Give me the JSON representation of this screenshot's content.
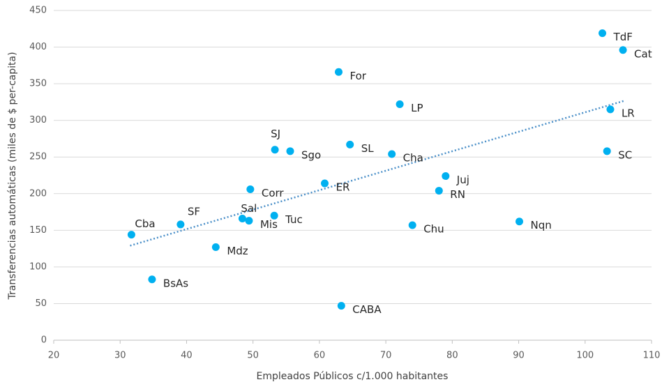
{
  "chart_data": {
    "type": "scatter",
    "x_label": "Empleados Públicos c/1.000 habitantes",
    "y_label": "Transferencias automáticas (miles de $ per-capita)",
    "labels": [
      "TdF",
      "Cat",
      "For",
      "LP",
      "LR",
      "SJ",
      "Sgo",
      "SL",
      "Cha",
      "SC",
      "Corr",
      "ER",
      "Juj",
      "RN",
      "SF",
      "Sal",
      "Mis",
      "Tuc",
      "Cba",
      "Chu",
      "Nqn",
      "Mdz",
      "BsAs",
      "CABA"
    ],
    "x": [
      102.6,
      105.7,
      62.9,
      72.1,
      103.8,
      53.3,
      55.6,
      64.6,
      70.9,
      103.3,
      49.6,
      60.8,
      79.0,
      78.0,
      39.1,
      48.4,
      49.4,
      53.2,
      31.7,
      74.0,
      90.1,
      44.4,
      34.8,
      63.3
    ],
    "values": [
      419,
      396,
      366,
      322,
      315,
      260,
      258,
      267,
      254,
      258,
      206,
      214,
      224,
      204,
      158,
      166,
      163,
      170,
      144,
      157,
      162,
      127,
      83,
      47
    ],
    "color": "#00b0f0",
    "trendline": {
      "x": [
        31.5,
        106
      ],
      "y": [
        129,
        327
      ],
      "color": "#4a8fc8"
    },
    "xlim": [
      20,
      110
    ],
    "xticks": [
      20,
      30,
      40,
      50,
      60,
      70,
      80,
      90,
      100,
      110
    ],
    "ylim": [
      0,
      450
    ],
    "yticks": [
      0,
      50,
      100,
      150,
      200,
      250,
      300,
      350,
      400,
      450
    ],
    "grid": true
  }
}
